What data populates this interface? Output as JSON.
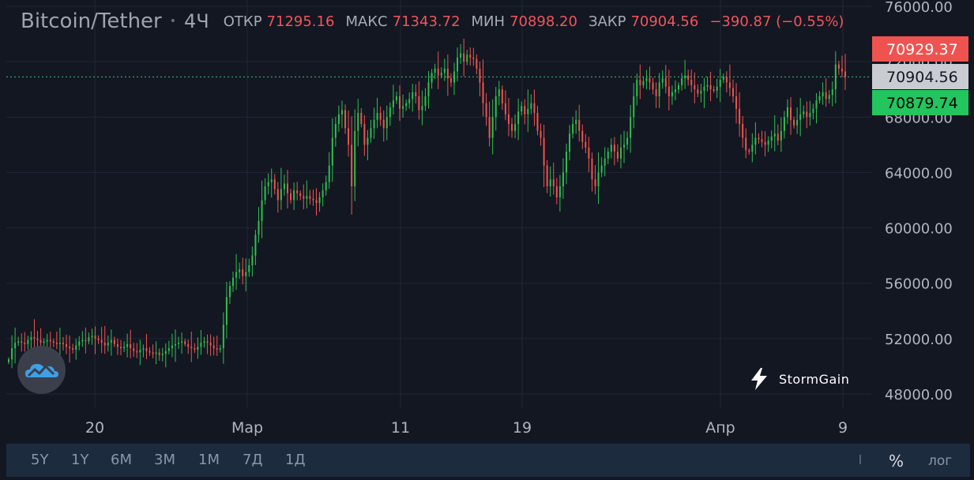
{
  "header": {
    "symbol": "Bitcoin/Tether",
    "timeframe": "4Ч",
    "open_label": "ОТКР",
    "open": "71295.16",
    "high_label": "МАКС",
    "high": "71343.72",
    "low_label": "МИН",
    "low": "70898.20",
    "close_label": "ЗАКР",
    "close": "70904.56",
    "change": "−390.87 (−0.55%)"
  },
  "brand": "StormGain",
  "toolbar": {
    "ranges": [
      "5Y",
      "1Y",
      "6M",
      "3M",
      "1M",
      "7Д",
      "1Д"
    ],
    "percent": "%",
    "log": "лог"
  },
  "colors": {
    "background": "#131722",
    "up": "#26a69a",
    "up_candle": "#2fbf4f",
    "down": "#ef5350",
    "grid": "#222737",
    "axis_text": "#b2b5be"
  },
  "chart_data": {
    "type": "candlestick",
    "title": "Bitcoin/Tether",
    "ylim": [
      46500,
      76500
    ],
    "y_ticks": [
      "48000.00",
      "52000.00",
      "56000.00",
      "60000.00",
      "64000.00",
      "68000.00",
      "72000.00",
      "76000.00"
    ],
    "x_ticks": [
      "20",
      "Мар",
      "11",
      "19",
      "Апр",
      "9"
    ],
    "price_tags": [
      {
        "label": "70929.37",
        "value": 70929.37,
        "color": "#ef5350",
        "text_color": "#ffffff"
      },
      {
        "label": "70904.56",
        "value": 70904.56,
        "color": "#c9ccd1",
        "text_color": "#131722"
      },
      {
        "label": "70879.74",
        "value": 70879.74,
        "color": "#22c55e",
        "text_color": "#000000"
      }
    ],
    "last_price": 70904.56,
    "close_series": [
      50500,
      51300,
      51700,
      51800,
      51700,
      51600,
      51900,
      52100,
      52000,
      51900,
      51700,
      51800,
      51900,
      51800,
      51700,
      51600,
      51700,
      51600,
      51400,
      51300,
      51200,
      51500,
      51800,
      51900,
      51800,
      52100,
      52200,
      52000,
      51900,
      51700,
      51500,
      51700,
      51900,
      51600,
      51400,
      51300,
      51400,
      51600,
      51300,
      51100,
      51000,
      51200,
      51300,
      51100,
      51000,
      50900,
      51000,
      50800,
      50900,
      51100,
      51300,
      51500,
      51600,
      51700,
      51800,
      51600,
      51400,
      51300,
      51200,
      51400,
      51700,
      51800,
      51700,
      51500,
      51300,
      51200,
      51300,
      53000,
      55000,
      55800,
      56400,
      56800,
      57000,
      56500,
      56800,
      57300,
      58000,
      59500,
      60500,
      62000,
      63000,
      63300,
      63500,
      62800,
      62000,
      62800,
      63200,
      62500,
      62000,
      62700,
      62500,
      62300,
      62100,
      62300,
      62100,
      62000,
      61800,
      62200,
      62700,
      63300,
      64500,
      66500,
      67500,
      68200,
      68500,
      67200,
      66000,
      63000,
      67000,
      68300,
      67500,
      66000,
      66500,
      67200,
      67800,
      68300,
      67800,
      67200,
      68000,
      68700,
      69200,
      69500,
      68600,
      68800,
      69000,
      69300,
      69800,
      69500,
      68500,
      68800,
      69500,
      70500,
      71200,
      71500,
      71000,
      71200,
      71500,
      70800,
      70500,
      71300,
      72300,
      72600,
      72000,
      72500,
      72300,
      72200,
      71500,
      70500,
      69000,
      68000,
      66500,
      68000,
      69500,
      70000,
      69000,
      68200,
      67500,
      67000,
      67500,
      68400,
      68800,
      68200,
      68600,
      69000,
      68300,
      67000,
      66500,
      64500,
      63000,
      63500,
      63000,
      62200,
      63000,
      64000,
      65500,
      66800,
      67500,
      67800,
      67000,
      66200,
      65800,
      65000,
      63500,
      63000,
      64000,
      64500,
      65000,
      65500,
      66000,
      65500,
      65000,
      65800,
      66000,
      66500,
      68000,
      69500,
      70700,
      70300,
      70600,
      70800,
      70500,
      70000,
      69500,
      70500,
      70800,
      70200,
      69500,
      69800,
      70000,
      70300,
      70800,
      71000,
      70700,
      70300,
      70000,
      69700,
      69900,
      70200,
      70300,
      70000,
      69900,
      70200,
      70700,
      70900,
      70500,
      70100,
      69500,
      68600,
      67500,
      66500,
      65600,
      65500,
      66000,
      66500,
      66400,
      66200,
      66000,
      66300,
      66600,
      66800,
      66300,
      67000,
      68000,
      68700,
      67800,
      67400,
      67800,
      68200,
      68400,
      68000,
      68300,
      68600,
      69200,
      69500,
      69800,
      69300,
      69600,
      70000,
      71800,
      71500,
      71300,
      70904.56
    ]
  }
}
